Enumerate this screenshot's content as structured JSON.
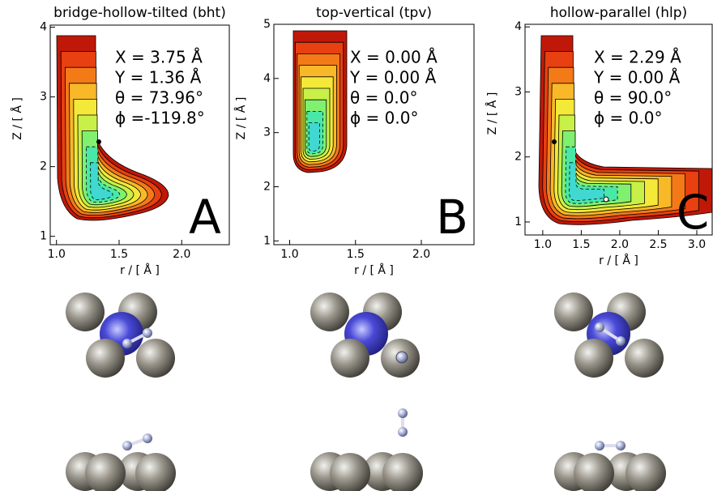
{
  "panels": [
    {
      "title": "bridge-hollow-tilted (bht)",
      "xlabel": "r / [ Å ]",
      "ylabel": "Z / [ Å ]",
      "annotations": [
        "X = 3.75 Å",
        "Y = 1.36 Å",
        "θ = 73.96°",
        "ϕ =-119.8°"
      ],
      "letter": "A",
      "xlim": [
        0.95,
        2.38
      ],
      "ylim": [
        0.88,
        4.03
      ],
      "xticks": [
        {
          "value": 1.0,
          "label": "1.0"
        },
        1.5,
        {
          "value": 2.0,
          "label": "2.0"
        }
      ],
      "yticks": [
        1,
        2,
        3,
        4
      ]
    },
    {
      "title": "top-vertical (tpv)",
      "xlabel": "r / [ Å ]",
      "ylabel": "Z / [ Å ]",
      "annotations": [
        "X = 0.00 Å",
        "Y = 0.00 Å",
        "θ = 0.0°",
        "ϕ = 0.0°"
      ],
      "letter": "B",
      "xlim": [
        0.88,
        2.4
      ],
      "ylim": [
        0.93,
        5.0
      ],
      "xticks": [
        {
          "value": 1.0,
          "label": "1.0"
        },
        1.5,
        {
          "value": 2.0,
          "label": "2.0"
        }
      ],
      "yticks": [
        1,
        2,
        3,
        4,
        5
      ]
    },
    {
      "title": "hollow-parallel (hlp)",
      "xlabel": "r / [ Å ]",
      "ylabel": "Z / [ Å ]",
      "annotations": [
        "X = 2.29 Å",
        "Y = 0.00 Å",
        "θ = 90.0°",
        "ϕ = 0.0°"
      ],
      "letter": "C",
      "xlim": [
        0.77,
        3.2
      ],
      "ylim": [
        0.8,
        4.04
      ],
      "xticks": [
        {
          "value": 1.0,
          "label": "1.0"
        },
        1.5,
        {
          "value": 2.0,
          "label": "2.0"
        },
        2.5,
        {
          "value": 3.0,
          "label": "3.0"
        }
      ],
      "yticks": [
        1,
        2,
        3,
        4
      ]
    }
  ]
}
